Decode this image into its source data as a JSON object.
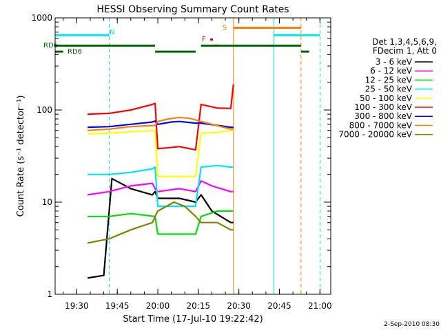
{
  "colors": {
    "background": "#ffffff",
    "axis": "#000000",
    "cyan": "#00e5ee",
    "green_band": "#006400",
    "orange": "#ff7f00",
    "red": "#e00000"
  },
  "chart_data": {
    "type": "line",
    "title": "HESSI Observing Summary Count Rates",
    "xlabel": "Start Time (17-Jul-10 19:22:42)",
    "ylabel": "Count Rate (s⁻¹ detector⁻¹)",
    "footer": "2-Sep-2010 08:30",
    "y_scale": "log",
    "ylim": [
      1,
      1000
    ],
    "xlim": [
      "19:22",
      "21:04"
    ],
    "x_ticks": [
      "19:30",
      "19:45",
      "20:00",
      "20:15",
      "20:30",
      "20:45",
      "21:00"
    ],
    "y_ticks": [
      "1",
      "10",
      "100",
      "1000"
    ],
    "legend_header": [
      "Det 1,3,4,5,6,9,",
      "FDecim 1, Att 0"
    ],
    "legend_position": "right",
    "grid": false,
    "series": [
      {
        "name": "3 - 6 keV",
        "color": "#000000",
        "points": [
          [
            "19:34",
            1.5
          ],
          [
            "19:40",
            1.6
          ],
          [
            "19:43",
            18
          ],
          [
            "19:50",
            14
          ],
          [
            "19:58",
            12
          ],
          [
            "19:59",
            13
          ],
          [
            "20:00",
            11
          ],
          [
            "20:08",
            11
          ],
          [
            "20:14",
            10
          ],
          [
            "20:16",
            12
          ],
          [
            "20:20",
            8
          ],
          [
            "20:27",
            6
          ],
          [
            "20:28",
            6
          ]
        ]
      },
      {
        "name": "6 - 12 keV",
        "color": "#ff00ff",
        "points": [
          [
            "19:34",
            12
          ],
          [
            "19:42",
            13
          ],
          [
            "19:50",
            15
          ],
          [
            "19:58",
            16
          ],
          [
            "19:59",
            14
          ],
          [
            "20:00",
            13
          ],
          [
            "20:08",
            14
          ],
          [
            "20:14",
            13
          ],
          [
            "20:16",
            17
          ],
          [
            "20:20",
            15
          ],
          [
            "20:27",
            13
          ],
          [
            "20:28",
            13
          ]
        ]
      },
      {
        "name": "12 - 25 keV",
        "color": "#00e000",
        "points": [
          [
            "19:34",
            7
          ],
          [
            "19:42",
            7
          ],
          [
            "19:50",
            7.5
          ],
          [
            "19:59",
            7
          ],
          [
            "20:00",
            4.5
          ],
          [
            "20:08",
            4.5
          ],
          [
            "20:14",
            4.5
          ],
          [
            "20:16",
            7
          ],
          [
            "20:22",
            8
          ],
          [
            "20:27",
            8
          ],
          [
            "20:28",
            8
          ]
        ]
      },
      {
        "name": "25 - 50 keV",
        "color": "#00e5ee",
        "points": [
          [
            "19:34",
            20
          ],
          [
            "19:42",
            20
          ],
          [
            "19:50",
            21
          ],
          [
            "19:58",
            23
          ],
          [
            "19:59",
            24
          ],
          [
            "20:00",
            9
          ],
          [
            "20:08",
            9
          ],
          [
            "20:14",
            9
          ],
          [
            "20:16",
            24
          ],
          [
            "20:22",
            25
          ],
          [
            "20:27",
            24
          ],
          [
            "20:28",
            24
          ]
        ]
      },
      {
        "name": "50 - 100 keV",
        "color": "#ffff00",
        "points": [
          [
            "19:34",
            55
          ],
          [
            "19:42",
            56
          ],
          [
            "19:50",
            58
          ],
          [
            "19:59",
            60
          ],
          [
            "20:00",
            19
          ],
          [
            "20:08",
            19
          ],
          [
            "20:14",
            19
          ],
          [
            "20:16",
            56
          ],
          [
            "20:22",
            57
          ],
          [
            "20:27",
            60
          ],
          [
            "20:28",
            60
          ]
        ]
      },
      {
        "name": "100 - 300 keV",
        "color": "#ff0000",
        "points": [
          [
            "19:34",
            90
          ],
          [
            "19:42",
            92
          ],
          [
            "19:50",
            100
          ],
          [
            "19:58",
            115
          ],
          [
            "19:59",
            118
          ],
          [
            "20:00",
            38
          ],
          [
            "20:08",
            40
          ],
          [
            "20:14",
            37
          ],
          [
            "20:16",
            115
          ],
          [
            "20:22",
            105
          ],
          [
            "20:27",
            104
          ],
          [
            "20:28",
            190
          ]
        ]
      },
      {
        "name": "300 - 800 keV",
        "color": "#0000ff",
        "points": [
          [
            "19:34",
            65
          ],
          [
            "19:42",
            66
          ],
          [
            "19:50",
            70
          ],
          [
            "19:58",
            74
          ],
          [
            "19:59",
            76
          ],
          [
            "20:00",
            70
          ],
          [
            "20:05",
            74
          ],
          [
            "20:08",
            75
          ],
          [
            "20:14",
            72
          ],
          [
            "20:16",
            72
          ],
          [
            "20:22",
            68
          ],
          [
            "20:27",
            65
          ],
          [
            "20:28",
            65
          ]
        ]
      },
      {
        "name": "800 - 7000 keV",
        "color": "#ff7f00",
        "points": [
          [
            "19:34",
            60
          ],
          [
            "19:42",
            62
          ],
          [
            "19:50",
            66
          ],
          [
            "19:59",
            68
          ],
          [
            "20:00",
            75
          ],
          [
            "20:04",
            80
          ],
          [
            "20:08",
            83
          ],
          [
            "20:12",
            81
          ],
          [
            "20:16",
            75
          ],
          [
            "20:20",
            70
          ],
          [
            "20:27",
            62
          ],
          [
            "20:28",
            62
          ]
        ]
      },
      {
        "name": "7000 - 20000 keV",
        "color": "#808000",
        "points": [
          [
            "19:34",
            3.6
          ],
          [
            "19:42",
            4
          ],
          [
            "19:50",
            5
          ],
          [
            "19:58",
            6
          ],
          [
            "19:59",
            7
          ],
          [
            "20:00",
            8
          ],
          [
            "20:06",
            10
          ],
          [
            "20:10",
            9
          ],
          [
            "20:14",
            7
          ],
          [
            "20:16",
            6
          ],
          [
            "20:22",
            6
          ],
          [
            "20:27",
            5
          ],
          [
            "20:28",
            5
          ]
        ]
      }
    ],
    "flag_labels": [
      "N",
      "S",
      "F",
      "RD6",
      "RD6"
    ],
    "flags": [
      {
        "label": "N",
        "color": "#00e5ee",
        "y": 650,
        "segments": [
          [
            "19:22",
            "19:42"
          ],
          [
            "20:43",
            "21:00"
          ]
        ]
      },
      {
        "label": "S",
        "color": "#ff7f00",
        "y": 780,
        "segments": [
          [
            "20:28",
            "20:53"
          ]
        ]
      },
      {
        "label": "F",
        "color": "#e00000",
        "y": 500,
        "segments": [
          [
            "20:21",
            "20:22"
          ]
        ]
      },
      {
        "label": "RD6",
        "color": "#006400",
        "y": 500,
        "segments": [
          [
            "19:22",
            "19:59"
          ],
          [
            "20:16",
            "20:53"
          ]
        ]
      },
      {
        "label": "RD6",
        "color": "#006400",
        "y": 430,
        "segments": [
          [
            "19:22",
            "19:25"
          ],
          [
            "19:59",
            "20:14"
          ],
          [
            "20:53",
            "20:56"
          ]
        ]
      }
    ],
    "vertical_markers": [
      {
        "time": "19:22",
        "color": "#00e5ee",
        "style": "solid"
      },
      {
        "time": "19:42",
        "color": "#00e5ee",
        "style": "dashed"
      },
      {
        "time": "20:28",
        "color": "#ff7f00",
        "style": "solid"
      },
      {
        "time": "20:43",
        "color": "#00e5ee",
        "style": "solid"
      },
      {
        "time": "20:53",
        "color": "#ff7f00",
        "style": "dashed"
      },
      {
        "time": "21:00",
        "color": "#00e5ee",
        "style": "dashed"
      }
    ]
  }
}
